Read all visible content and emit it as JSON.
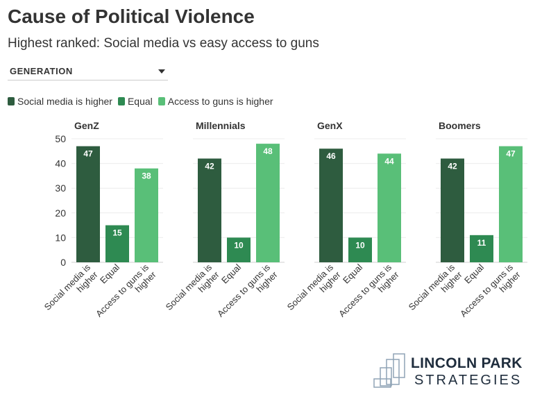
{
  "title": "Cause of Political Violence",
  "subtitle": "Highest ranked: Social media vs easy access to guns",
  "filter": {
    "label": "GENERATION"
  },
  "legend": [
    {
      "label": "Social media is higher",
      "color": "#2e5c3f"
    },
    {
      "label": "Equal",
      "color": "#2e8a52"
    },
    {
      "label": "Access to guns is higher",
      "color": "#59bf78"
    }
  ],
  "logo": {
    "line1": "LINCOLN PARK",
    "line2": "STRATEGIES"
  },
  "chart_data": {
    "type": "bar",
    "categories": [
      "Social media is higher",
      "Equal",
      "Access to guns is higher"
    ],
    "category_lines": [
      [
        "Social media is",
        "higher"
      ],
      [
        "Equal"
      ],
      [
        "Access to guns is",
        "higher"
      ]
    ],
    "colors": [
      "#2e5c3f",
      "#2e8a52",
      "#59bf78"
    ],
    "ylim": [
      0,
      50
    ],
    "yticks": [
      0,
      10,
      20,
      30,
      40,
      50
    ],
    "panels": [
      {
        "name": "GenZ",
        "values": [
          47,
          15,
          38
        ]
      },
      {
        "name": "Millennials",
        "values": [
          42,
          10,
          48
        ]
      },
      {
        "name": "GenX",
        "values": [
          46,
          10,
          44
        ]
      },
      {
        "name": "Boomers",
        "values": [
          42,
          11,
          47
        ]
      }
    ]
  }
}
